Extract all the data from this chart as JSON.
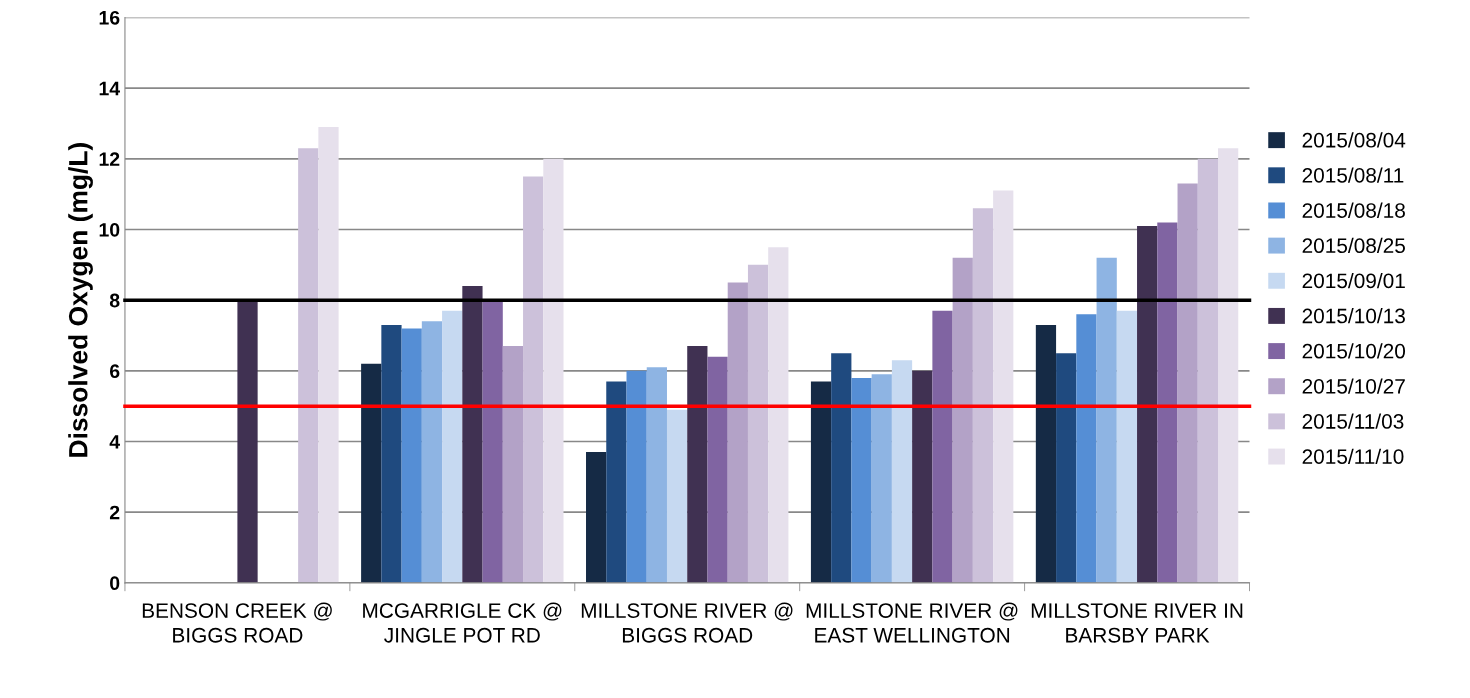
{
  "chart_data": {
    "type": "bar",
    "ylabel": "Dissolved Oxygen (mg/L)",
    "categories": [
      "BENSON CREEK @ BIGGS ROAD",
      "MCGARRIGLE CK @ JINGLE POT RD",
      "MILLSTONE RIVER @ BIGGS ROAD",
      "MILLSTONE RIVER @ EAST WELLINGTON",
      "MILLSTONE RIVER IN BARSBY PARK"
    ],
    "series": [
      {
        "name": "2015/08/04",
        "color": "#152a45",
        "values": [
          null,
          6.2,
          3.7,
          5.7,
          7.3
        ]
      },
      {
        "name": "2015/08/11",
        "color": "#1f4a7f",
        "values": [
          null,
          7.3,
          5.7,
          6.5,
          6.5
        ]
      },
      {
        "name": "2015/08/18",
        "color": "#558ed5",
        "values": [
          null,
          7.2,
          6.0,
          5.8,
          7.6
        ]
      },
      {
        "name": "2015/08/25",
        "color": "#8eb4e3",
        "values": [
          null,
          7.4,
          6.1,
          5.9,
          9.2
        ]
      },
      {
        "name": "2015/09/01",
        "color": "#c6d9f1",
        "values": [
          null,
          7.7,
          4.9,
          6.3,
          7.7
        ]
      },
      {
        "name": "2015/10/13",
        "color": "#403152",
        "values": [
          8.0,
          8.4,
          6.7,
          6.0,
          10.1
        ]
      },
      {
        "name": "2015/10/20",
        "color": "#8064a2",
        "values": [
          null,
          8.0,
          6.4,
          7.7,
          10.2
        ]
      },
      {
        "name": "2015/10/27",
        "color": "#b3a2c7",
        "values": [
          null,
          6.7,
          8.5,
          9.2,
          11.3
        ]
      },
      {
        "name": "2015/11/03",
        "color": "#ccc1da",
        "values": [
          12.3,
          11.5,
          9.0,
          10.6,
          12.0
        ]
      },
      {
        "name": "2015/11/10",
        "color": "#e6e0ec",
        "values": [
          12.9,
          12.0,
          9.5,
          11.1,
          12.3
        ]
      }
    ],
    "ylim": [
      0,
      16
    ],
    "yticks": [
      0,
      2,
      4,
      6,
      8,
      10,
      12,
      14,
      16
    ],
    "grid": "y",
    "legend": "right",
    "ref_lines": [
      {
        "axis": "y",
        "value": 8,
        "color": "#000000"
      },
      {
        "axis": "y",
        "value": 5,
        "color": "#ff0000"
      }
    ]
  }
}
